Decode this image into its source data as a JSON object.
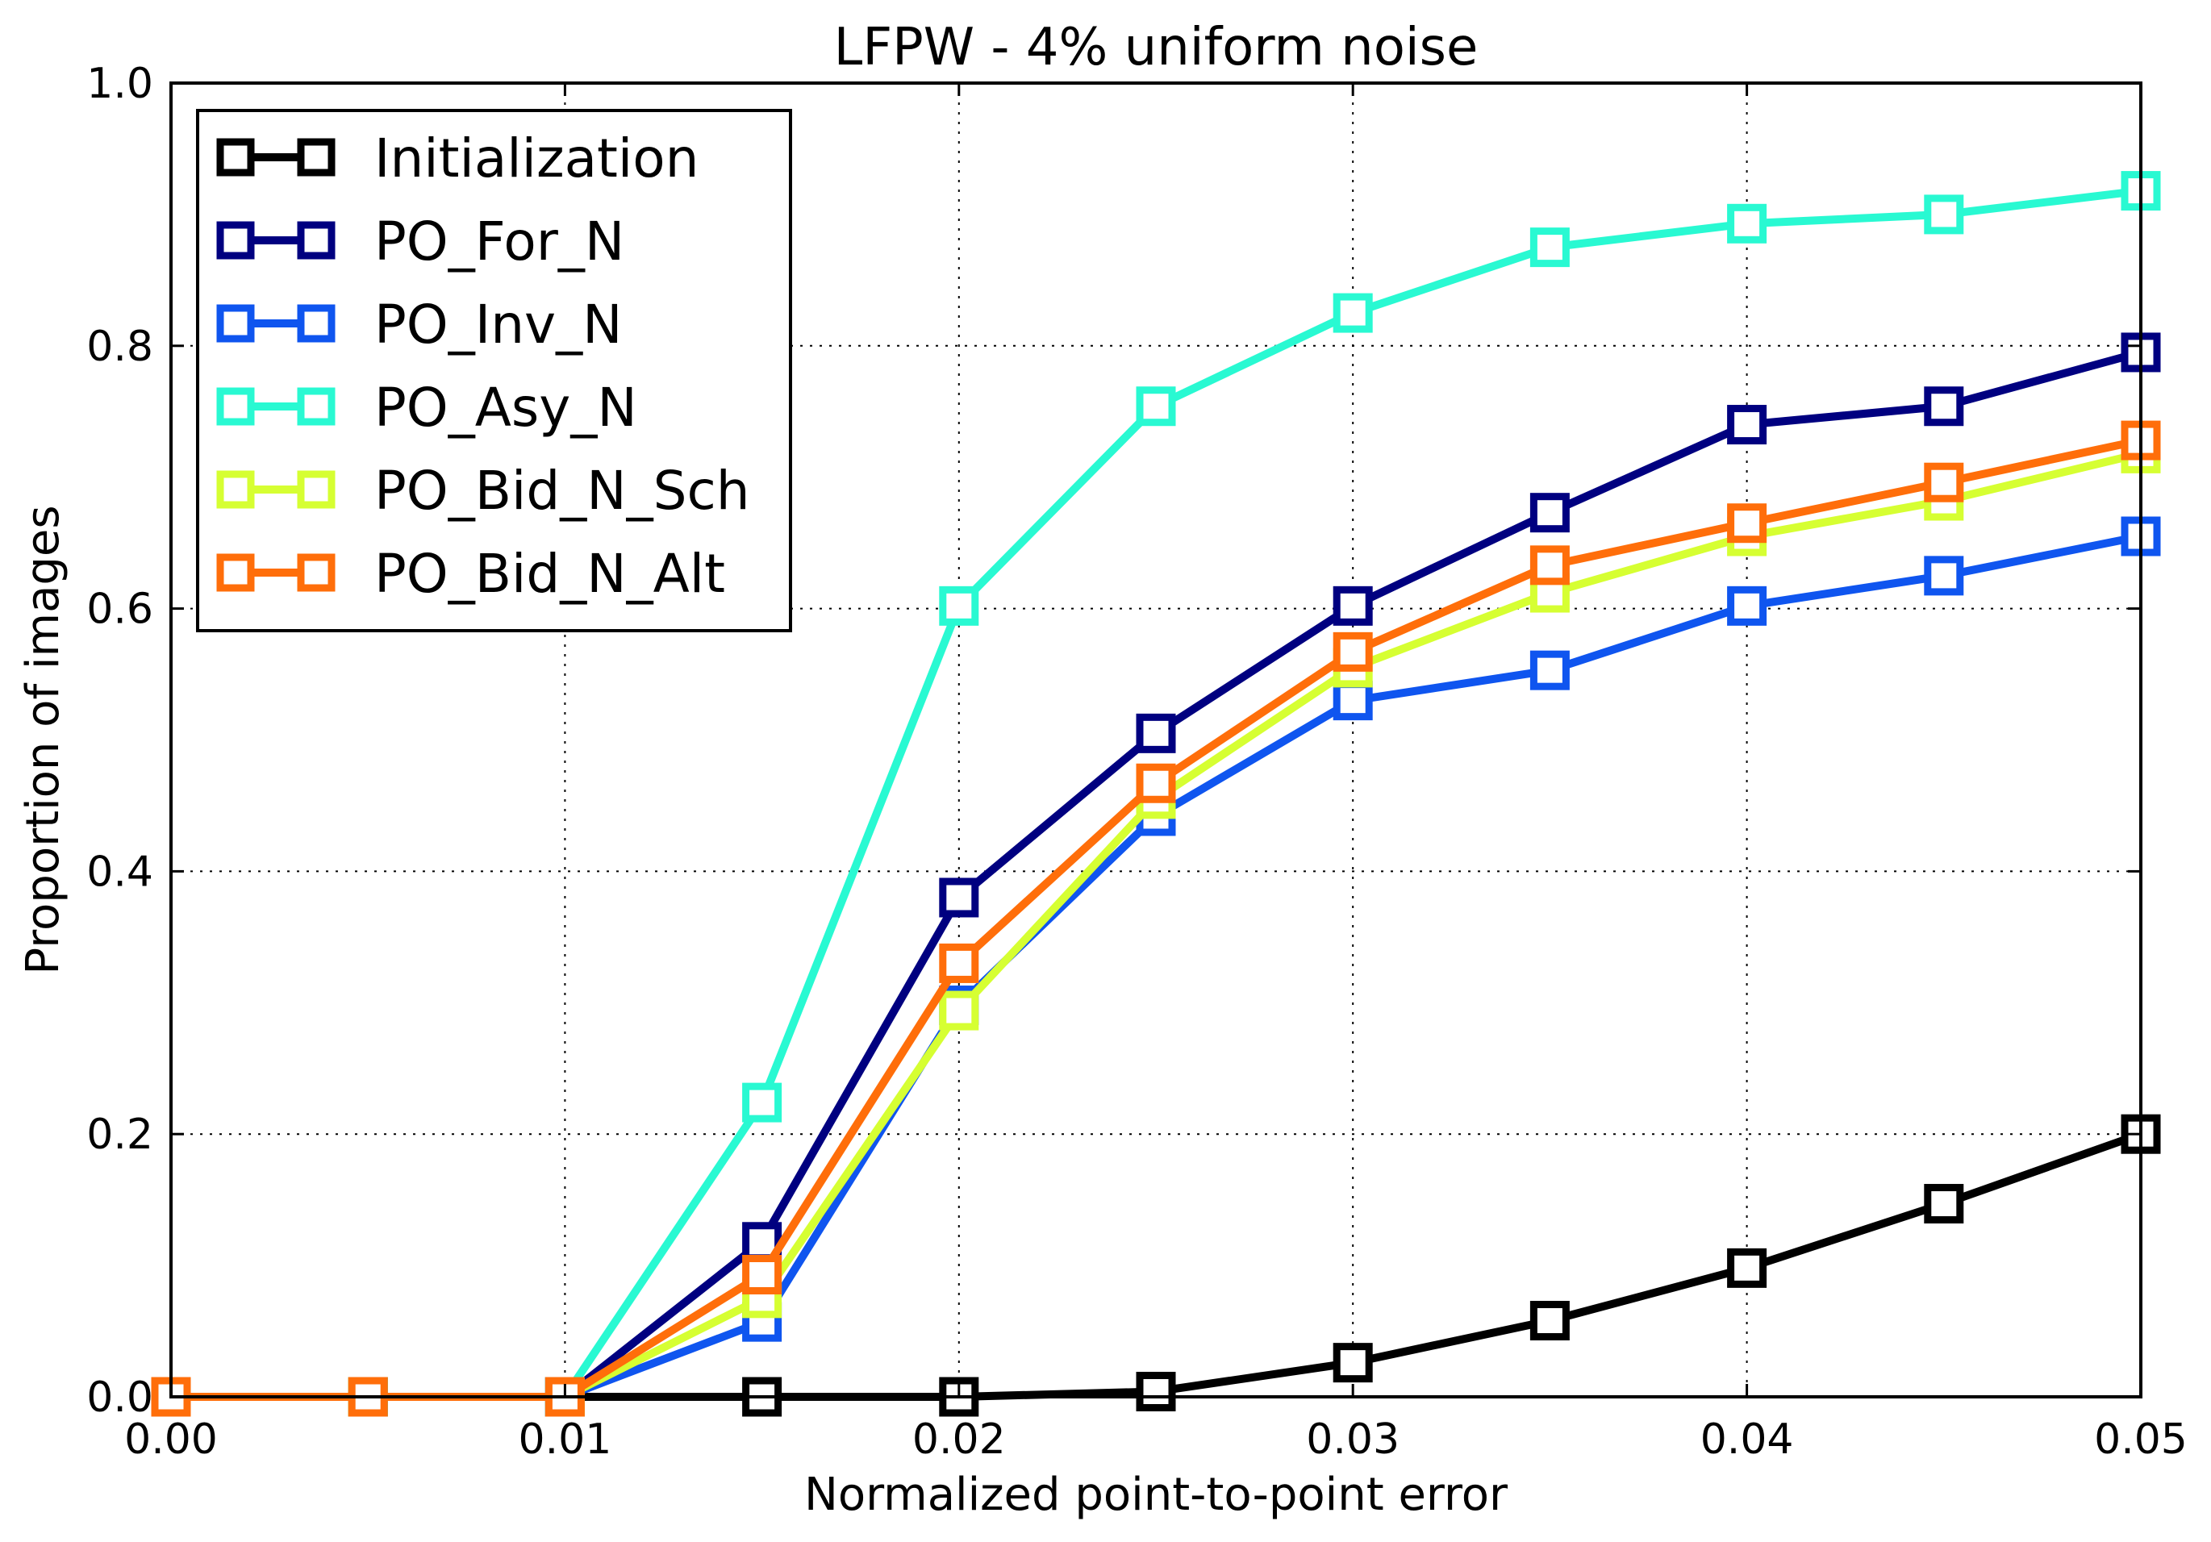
{
  "chart_data": {
    "type": "line",
    "title": "LFPW - 4% uniform noise",
    "xlabel": "Normalized point-to-point error",
    "ylabel": "Proportion of images",
    "xlim": [
      0,
      0.05
    ],
    "ylim": [
      0,
      1.0
    ],
    "xticks": [
      "0.00",
      "0.01",
      "0.02",
      "0.03",
      "0.04",
      "0.05"
    ],
    "yticks": [
      "0.0",
      "0.2",
      "0.4",
      "0.6",
      "0.8",
      "1.0"
    ],
    "grid": true,
    "legend_position": "top-left",
    "marker": "square",
    "x": [
      0,
      0.005,
      0.01,
      0.015,
      0.02,
      0.025,
      0.03,
      0.035,
      0.04,
      0.045,
      0.05
    ],
    "series": [
      {
        "name": "Initialization",
        "color": "#000000",
        "values": [
          0,
          0,
          0,
          0,
          0,
          0.004,
          0.026,
          0.058,
          0.098,
          0.147,
          0.2
        ]
      },
      {
        "name": "PO_For_N",
        "color": "#000080",
        "values": [
          0,
          0,
          0,
          0.118,
          0.38,
          0.505,
          0.602,
          0.673,
          0.74,
          0.754,
          0.795
        ]
      },
      {
        "name": "PO_Inv_N",
        "color": "#0f55ef",
        "values": [
          0,
          0,
          0,
          0.057,
          0.298,
          0.442,
          0.53,
          0.553,
          0.602,
          0.625,
          0.655
        ]
      },
      {
        "name": "PO_Asy_N",
        "color": "#29f9d2",
        "values": [
          0,
          0,
          0,
          0.224,
          0.602,
          0.754,
          0.825,
          0.875,
          0.893,
          0.9,
          0.918
        ]
      },
      {
        "name": "PO_Bid_N_Sch",
        "color": "#d6ff32",
        "values": [
          0,
          0,
          0,
          0.075,
          0.294,
          0.455,
          0.555,
          0.612,
          0.655,
          0.682,
          0.718
        ]
      },
      {
        "name": "PO_Bid_N_Alt",
        "color": "#ff6e0a",
        "values": [
          0,
          0,
          0,
          0.093,
          0.33,
          0.467,
          0.567,
          0.633,
          0.665,
          0.696,
          0.728
        ]
      }
    ]
  }
}
